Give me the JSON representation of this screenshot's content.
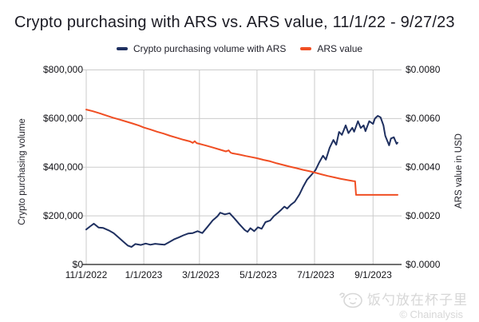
{
  "title": "Crypto purchasing with ARS vs. ARS value, 11/1/22 - 9/27/23",
  "legend": {
    "items": [
      {
        "label": "Crypto purchasing volume with ARS",
        "color": "#1f3060"
      },
      {
        "label": "ARS value",
        "color": "#f04e23"
      }
    ]
  },
  "axes": {
    "left": {
      "title": "Crypto purchasing volume",
      "ticks": [
        "$800,000",
        "$600,000",
        "$400,000",
        "$200,000",
        "$0"
      ]
    },
    "right": {
      "title": "ARS value in USD",
      "ticks": [
        "$0.0080",
        "$0.0060",
        "$0.0040",
        "$0.0020",
        "$0.0000"
      ]
    },
    "x": {
      "ticks": [
        "11/1/2022",
        "1/1/2023",
        "3/1/2023",
        "5/1/2023",
        "7/1/2023",
        "9/1/2023"
      ]
    }
  },
  "watermark": {
    "text": "饭勺放在杯子里",
    "credit": "© Chainalysis",
    "color": "#d7d7d7"
  },
  "colors": {
    "gridline": "#cbcbcb",
    "axis_line": "#1c1c1c",
    "crypto_line": "#1f3060",
    "ars_line": "#f04e23"
  },
  "chart_data": {
    "type": "line",
    "title": "Crypto purchasing with ARS vs. ARS value, 11/1/22 - 9/27/23",
    "grid": true,
    "legend_position": "top-center",
    "x_axis": {
      "unit": "date",
      "start": "11/1/2022",
      "end": "9/27/2023",
      "total_days": 330,
      "tick_days": [
        0,
        61,
        120,
        181,
        242,
        304
      ],
      "tick_labels": [
        "11/1/2022",
        "1/1/2023",
        "3/1/2023",
        "5/1/2023",
        "7/1/2023",
        "9/1/2023"
      ]
    },
    "y_left": {
      "label": "Crypto purchasing volume",
      "range": [
        0,
        800000
      ],
      "tick_step": 200000,
      "unit": "USD"
    },
    "y_right": {
      "label": "ARS value in USD",
      "range": [
        0,
        0.008
      ],
      "tick_step": 0.002,
      "unit": "USD per ARS"
    },
    "series": [
      {
        "name": "Crypto purchasing volume with ARS",
        "axis": "left",
        "color": "#1f3060",
        "points_day_value": [
          [
            0,
            144000
          ],
          [
            4,
            156000
          ],
          [
            8,
            168000
          ],
          [
            13,
            152000
          ],
          [
            18,
            150000
          ],
          [
            24,
            140000
          ],
          [
            29,
            129000
          ],
          [
            34,
            112000
          ],
          [
            39,
            95000
          ],
          [
            44,
            78000
          ],
          [
            48,
            72000
          ],
          [
            52,
            84000
          ],
          [
            58,
            80000
          ],
          [
            63,
            86000
          ],
          [
            68,
            81000
          ],
          [
            73,
            85000
          ],
          [
            78,
            83000
          ],
          [
            83,
            81000
          ],
          [
            88,
            92000
          ],
          [
            93,
            103000
          ],
          [
            98,
            111000
          ],
          [
            103,
            120000
          ],
          [
            108,
            127000
          ],
          [
            113,
            129000
          ],
          [
            118,
            137000
          ],
          [
            123,
            129000
          ],
          [
            129,
            157000
          ],
          [
            134,
            181000
          ],
          [
            139,
            198000
          ],
          [
            142,
            213000
          ],
          [
            147,
            206000
          ],
          [
            152,
            211000
          ],
          [
            157,
            190000
          ],
          [
            162,
            167000
          ],
          [
            168,
            142000
          ],
          [
            171,
            134000
          ],
          [
            174,
            149000
          ],
          [
            178,
            137000
          ],
          [
            182,
            153000
          ],
          [
            186,
            147000
          ],
          [
            190,
            174000
          ],
          [
            195,
            181000
          ],
          [
            199,
            199000
          ],
          [
            203,
            212000
          ],
          [
            207,
            226000
          ],
          [
            210,
            238000
          ],
          [
            213,
            230000
          ],
          [
            217,
            246000
          ],
          [
            221,
            258000
          ],
          [
            226,
            288000
          ],
          [
            230,
            320000
          ],
          [
            234,
            348000
          ],
          [
            239,
            370000
          ],
          [
            243,
            388000
          ],
          [
            247,
            420000
          ],
          [
            251,
            447000
          ],
          [
            254,
            431000
          ],
          [
            258,
            480000
          ],
          [
            262,
            512000
          ],
          [
            265,
            492000
          ],
          [
            268,
            545000
          ],
          [
            271,
            533000
          ],
          [
            275,
            572000
          ],
          [
            278,
            540000
          ],
          [
            282,
            562000
          ],
          [
            284,
            546000
          ],
          [
            288,
            589000
          ],
          [
            291,
            561000
          ],
          [
            294,
            572000
          ],
          [
            296,
            548000
          ],
          [
            300,
            589000
          ],
          [
            304,
            578000
          ],
          [
            306,
            600000
          ],
          [
            309,
            611000
          ],
          [
            312,
            605000
          ],
          [
            315,
            572000
          ],
          [
            317,
            529000
          ],
          [
            321,
            490000
          ],
          [
            323,
            518000
          ],
          [
            326,
            523000
          ],
          [
            329,
            496000
          ],
          [
            330,
            501000
          ]
        ]
      },
      {
        "name": "ARS value",
        "axis": "right",
        "color": "#f04e23",
        "points_day_value": [
          [
            0,
            0.00637
          ],
          [
            7,
            0.0063
          ],
          [
            14,
            0.00622
          ],
          [
            21,
            0.00613
          ],
          [
            28,
            0.00604
          ],
          [
            35,
            0.00596
          ],
          [
            42,
            0.00588
          ],
          [
            49,
            0.0058
          ],
          [
            56,
            0.00571
          ],
          [
            61,
            0.00563
          ],
          [
            68,
            0.00555
          ],
          [
            75,
            0.00546
          ],
          [
            82,
            0.00538
          ],
          [
            89,
            0.00529
          ],
          [
            96,
            0.00521
          ],
          [
            103,
            0.00513
          ],
          [
            110,
            0.00506
          ],
          [
            113,
            0.005
          ],
          [
            115,
            0.00507
          ],
          [
            117,
            0.00499
          ],
          [
            120,
            0.00496
          ],
          [
            127,
            0.00489
          ],
          [
            134,
            0.00481
          ],
          [
            141,
            0.00473
          ],
          [
            148,
            0.00465
          ],
          [
            151,
            0.00469
          ],
          [
            153,
            0.0046
          ],
          [
            155,
            0.00457
          ],
          [
            162,
            0.00452
          ],
          [
            169,
            0.00446
          ],
          [
            176,
            0.00441
          ],
          [
            181,
            0.00437
          ],
          [
            188,
            0.0043
          ],
          [
            195,
            0.00424
          ],
          [
            202,
            0.00416
          ],
          [
            209,
            0.00409
          ],
          [
            216,
            0.00402
          ],
          [
            223,
            0.00396
          ],
          [
            230,
            0.00389
          ],
          [
            237,
            0.00383
          ],
          [
            242,
            0.00378
          ],
          [
            249,
            0.00371
          ],
          [
            256,
            0.00364
          ],
          [
            263,
            0.00358
          ],
          [
            270,
            0.00352
          ],
          [
            277,
            0.00347
          ],
          [
            283,
            0.00343
          ],
          [
            285,
            0.00342
          ],
          [
            286,
            0.00286
          ],
          [
            330,
            0.00286
          ]
        ]
      }
    ]
  }
}
